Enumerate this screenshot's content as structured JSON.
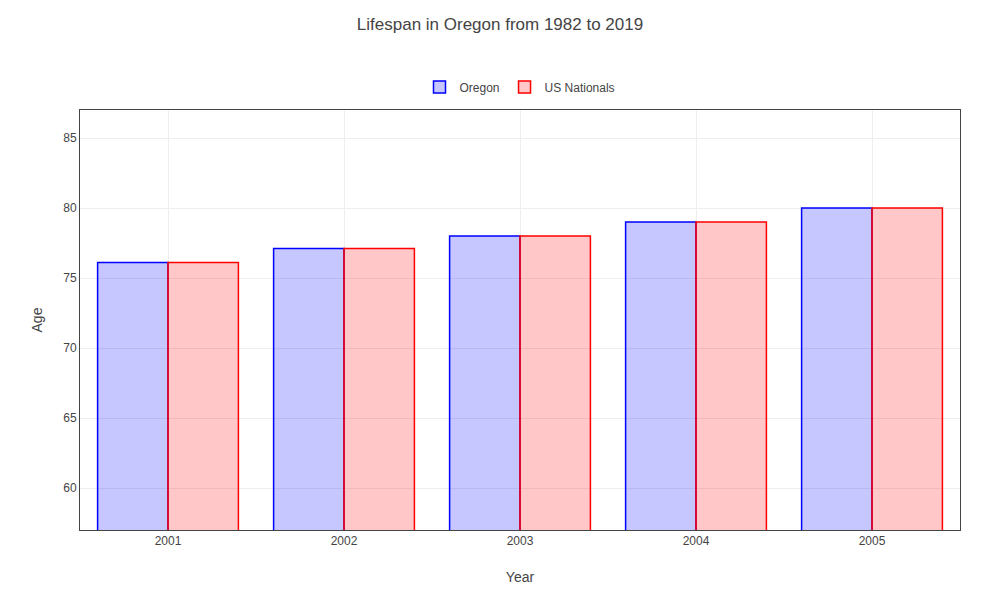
{
  "chart_data": {
    "type": "bar",
    "title": "Lifespan in Oregon from 1982 to 2019",
    "xlabel": "Year",
    "ylabel": "Age",
    "categories": [
      "2001",
      "2002",
      "2003",
      "2004",
      "2005"
    ],
    "series": [
      {
        "name": "Oregon",
        "color": "#0000ff",
        "values": [
          76.1,
          77.1,
          78.0,
          79.0,
          80.0
        ]
      },
      {
        "name": "US Nationals",
        "color": "#ff0000",
        "values": [
          76.1,
          77.1,
          78.0,
          79.0,
          80.0
        ]
      }
    ],
    "ylim": [
      57,
      87
    ],
    "yticks": [
      60,
      65,
      70,
      75,
      80,
      85
    ],
    "grid": true,
    "legend": "top"
  }
}
